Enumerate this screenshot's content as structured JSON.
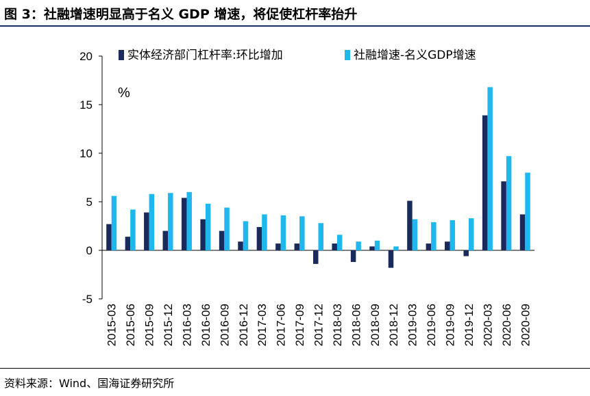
{
  "figure_title": "图 3：社融增速明显高于名义 GDP 增速，将促使杠杆率抬升",
  "source_text": "资料来源：Wind、国海证券研究所",
  "chart_data": {
    "type": "bar",
    "title": "",
    "unit_label": "%",
    "xlabel": "",
    "ylabel": "",
    "ylim": [
      -5,
      20
    ],
    "yticks": [
      -5,
      0,
      5,
      10,
      15,
      20
    ],
    "grid": false,
    "legend_position": "top",
    "categories": [
      "2015-03",
      "2015-06",
      "2015-09",
      "2015-12",
      "2016-03",
      "2016-06",
      "2016-09",
      "2016-12",
      "2017-03",
      "2017-06",
      "2017-09",
      "2017-12",
      "2018-03",
      "2018-06",
      "2018-09",
      "2018-12",
      "2019-03",
      "2019-06",
      "2019-09",
      "2019-12",
      "2020-03",
      "2020-06",
      "2020-09"
    ],
    "series": [
      {
        "name": "实体经济部门杠杆率:环比增加",
        "color": "#1a2a5a",
        "values": [
          2.7,
          1.4,
          3.9,
          2.0,
          5.4,
          3.2,
          2.0,
          0.9,
          2.4,
          0.7,
          0.7,
          -1.4,
          0.7,
          -1.2,
          0.4,
          -1.8,
          5.1,
          0.7,
          0.9,
          -0.6,
          13.9,
          7.1,
          3.7
        ]
      },
      {
        "name": "社融增速-名义GDP增速",
        "color": "#1fb8ee",
        "values": [
          5.6,
          4.2,
          5.8,
          5.9,
          6.0,
          4.8,
          4.4,
          3.0,
          3.7,
          3.6,
          3.5,
          2.8,
          1.6,
          0.9,
          1.0,
          0.4,
          3.2,
          2.9,
          3.1,
          3.3,
          16.8,
          9.7,
          8.0
        ]
      }
    ]
  }
}
